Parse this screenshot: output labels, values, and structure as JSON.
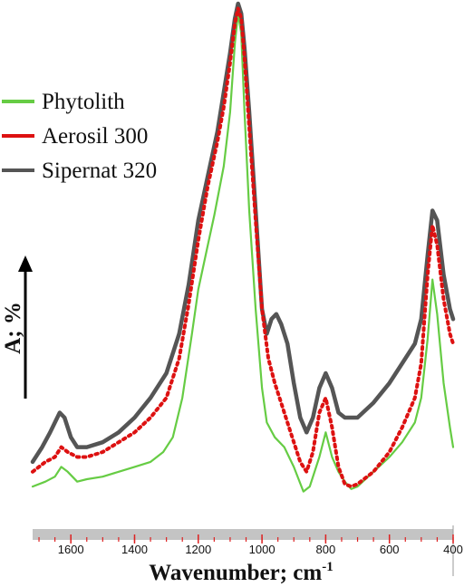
{
  "chart_data": {
    "type": "line",
    "title": "",
    "xlabel": "Wavenumber; cm",
    "xlabel_superscript": "-1",
    "ylabel": "A; %",
    "xlim": [
      1720,
      400
    ],
    "x_reversed": true,
    "ylim": [
      0,
      1
    ],
    "grid": false,
    "legend_position": "top-left",
    "x_ticks": [
      1600,
      1400,
      1200,
      1000,
      800,
      600,
      400
    ],
    "series": [
      {
        "name": "Phytolith",
        "color": "#66cc44",
        "style": "solid",
        "points": [
          [
            1720,
            0.02
          ],
          [
            1680,
            0.03
          ],
          [
            1650,
            0.04
          ],
          [
            1630,
            0.06
          ],
          [
            1610,
            0.05
          ],
          [
            1580,
            0.03
          ],
          [
            1550,
            0.035
          ],
          [
            1500,
            0.04
          ],
          [
            1450,
            0.05
          ],
          [
            1400,
            0.06
          ],
          [
            1350,
            0.07
          ],
          [
            1310,
            0.09
          ],
          [
            1280,
            0.12
          ],
          [
            1250,
            0.2
          ],
          [
            1220,
            0.33
          ],
          [
            1200,
            0.42
          ],
          [
            1170,
            0.51
          ],
          [
            1150,
            0.57
          ],
          [
            1120,
            0.67
          ],
          [
            1100,
            0.78
          ],
          [
            1085,
            0.92
          ],
          [
            1075,
            0.98
          ],
          [
            1065,
            0.94
          ],
          [
            1055,
            0.78
          ],
          [
            1040,
            0.58
          ],
          [
            1020,
            0.38
          ],
          [
            1000,
            0.22
          ],
          [
            985,
            0.15
          ],
          [
            960,
            0.12
          ],
          [
            930,
            0.1
          ],
          [
            900,
            0.06
          ],
          [
            870,
            0.01
          ],
          [
            850,
            0.02
          ],
          [
            820,
            0.08
          ],
          [
            800,
            0.13
          ],
          [
            780,
            0.08
          ],
          [
            760,
            0.05
          ],
          [
            740,
            0.03
          ],
          [
            720,
            0.015
          ],
          [
            700,
            0.02
          ],
          [
            650,
            0.05
          ],
          [
            600,
            0.08
          ],
          [
            560,
            0.11
          ],
          [
            520,
            0.15
          ],
          [
            500,
            0.2
          ],
          [
            480,
            0.32
          ],
          [
            465,
            0.44
          ],
          [
            450,
            0.37
          ],
          [
            430,
            0.23
          ],
          [
            410,
            0.14
          ],
          [
            400,
            0.1
          ]
        ]
      },
      {
        "name": "Aerosil 300",
        "color": "#dd1111",
        "style": "dotted",
        "points": [
          [
            1720,
            0.05
          ],
          [
            1680,
            0.07
          ],
          [
            1650,
            0.08
          ],
          [
            1630,
            0.1
          ],
          [
            1610,
            0.09
          ],
          [
            1580,
            0.08
          ],
          [
            1550,
            0.08
          ],
          [
            1500,
            0.09
          ],
          [
            1450,
            0.11
          ],
          [
            1400,
            0.13
          ],
          [
            1350,
            0.16
          ],
          [
            1300,
            0.2
          ],
          [
            1260,
            0.28
          ],
          [
            1230,
            0.39
          ],
          [
            1200,
            0.52
          ],
          [
            1170,
            0.63
          ],
          [
            1140,
            0.72
          ],
          [
            1120,
            0.79
          ],
          [
            1100,
            0.88
          ],
          [
            1085,
            0.96
          ],
          [
            1075,
            0.99
          ],
          [
            1065,
            0.97
          ],
          [
            1055,
            0.89
          ],
          [
            1040,
            0.75
          ],
          [
            1020,
            0.56
          ],
          [
            1000,
            0.38
          ],
          [
            980,
            0.28
          ],
          [
            960,
            0.23
          ],
          [
            940,
            0.19
          ],
          [
            910,
            0.13
          ],
          [
            880,
            0.07
          ],
          [
            860,
            0.05
          ],
          [
            840,
            0.09
          ],
          [
            820,
            0.17
          ],
          [
            800,
            0.2
          ],
          [
            780,
            0.14
          ],
          [
            760,
            0.06
          ],
          [
            740,
            0.025
          ],
          [
            720,
            0.02
          ],
          [
            700,
            0.025
          ],
          [
            650,
            0.05
          ],
          [
            600,
            0.09
          ],
          [
            560,
            0.14
          ],
          [
            520,
            0.2
          ],
          [
            500,
            0.27
          ],
          [
            480,
            0.45
          ],
          [
            465,
            0.55
          ],
          [
            450,
            0.51
          ],
          [
            430,
            0.4
          ],
          [
            410,
            0.33
          ],
          [
            400,
            0.31
          ]
        ]
      },
      {
        "name": "Sipernat 320",
        "color": "#555555",
        "style": "solid",
        "points": [
          [
            1720,
            0.07
          ],
          [
            1690,
            0.1
          ],
          [
            1665,
            0.13
          ],
          [
            1650,
            0.15
          ],
          [
            1635,
            0.17
          ],
          [
            1620,
            0.16
          ],
          [
            1600,
            0.12
          ],
          [
            1580,
            0.1
          ],
          [
            1550,
            0.1
          ],
          [
            1500,
            0.11
          ],
          [
            1450,
            0.13
          ],
          [
            1400,
            0.16
          ],
          [
            1350,
            0.2
          ],
          [
            1300,
            0.25
          ],
          [
            1260,
            0.33
          ],
          [
            1230,
            0.43
          ],
          [
            1200,
            0.56
          ],
          [
            1170,
            0.65
          ],
          [
            1140,
            0.74
          ],
          [
            1120,
            0.82
          ],
          [
            1100,
            0.9
          ],
          [
            1085,
            0.97
          ],
          [
            1075,
            1.0
          ],
          [
            1065,
            0.98
          ],
          [
            1055,
            0.91
          ],
          [
            1040,
            0.78
          ],
          [
            1020,
            0.58
          ],
          [
            1000,
            0.38
          ],
          [
            985,
            0.33
          ],
          [
            970,
            0.36
          ],
          [
            955,
            0.37
          ],
          [
            940,
            0.35
          ],
          [
            920,
            0.31
          ],
          [
            900,
            0.23
          ],
          [
            880,
            0.16
          ],
          [
            860,
            0.13
          ],
          [
            840,
            0.16
          ],
          [
            820,
            0.22
          ],
          [
            800,
            0.25
          ],
          [
            780,
            0.22
          ],
          [
            760,
            0.17
          ],
          [
            740,
            0.16
          ],
          [
            720,
            0.16
          ],
          [
            700,
            0.16
          ],
          [
            650,
            0.19
          ],
          [
            600,
            0.23
          ],
          [
            560,
            0.27
          ],
          [
            520,
            0.31
          ],
          [
            500,
            0.36
          ],
          [
            480,
            0.49
          ],
          [
            465,
            0.58
          ],
          [
            450,
            0.56
          ],
          [
            430,
            0.45
          ],
          [
            410,
            0.38
          ],
          [
            400,
            0.36
          ]
        ]
      }
    ]
  }
}
